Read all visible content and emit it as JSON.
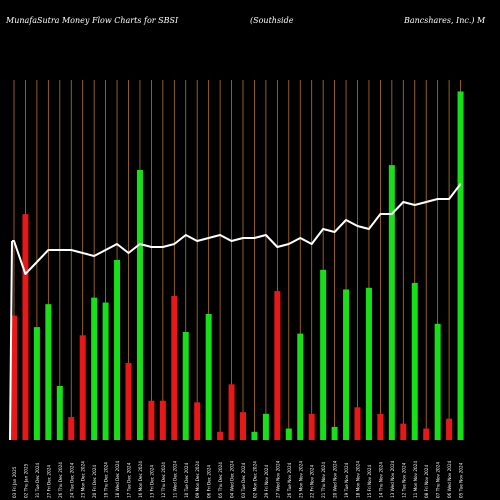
{
  "header": {
    "title_left": "MunafaSutra  Money Flow  Charts for SBSI",
    "title_mid": "(Southside",
    "title_right": "Bancshares,  Inc.) M"
  },
  "colors": {
    "background": "#000000",
    "gridline": "#b8742a",
    "inflow": "#18e018",
    "outflow": "#e81818",
    "line": "#ffffff",
    "text": "#ffffff"
  },
  "chart_data": {
    "type": "bar",
    "grid": "vertical",
    "legend": "none",
    "categories": [
      "03 Fri Jan 2025",
      "02 Thu Jan 2025",
      "31 Tue Dec 2024",
      "27 Fri Dec 2024",
      "26 Thu Dec 2024",
      "24 Tue Dec 2024",
      "23 Mon Dec 2024",
      "20 Fri Dec 2024",
      "19 Thu Dec 2024",
      "18 Wed Dec 2024",
      "17 Tue Dec 2024",
      "16 Mon Dec 2024",
      "13 Fri Dec 2024",
      "12 Thu Dec 2024",
      "11 Wed Dec 2024",
      "10 Tue Dec 2024",
      "09 Mon Dec 2024",
      "06 Fri Dec 2024",
      "05 Thu Dec 2024",
      "04 Wed Dec 2024",
      "03 Tue Dec 2024",
      "02 Mon Dec 2024",
      "29 Fri Nov 2024",
      "27 Wed Nov 2024",
      "26 Tue Nov 2024",
      "25 Mon Nov 2024",
      "22 Fri Nov 2024",
      "21 Thu Nov 2024",
      "20 Wed Nov 2024",
      "19 Tue Nov 2024",
      "18 Mon Nov 2024",
      "15 Fri Nov 2024",
      "14 Thu Nov 2024",
      "13 Wed Nov 2024",
      "12 Tue Nov 2024",
      "11 Mon Nov 2024",
      "08 Fri Nov 2024",
      "07 Thu Nov 2024",
      "06 Wed Nov 2024",
      "05 Tue Nov 2024"
    ],
    "flow": [
      -76,
      -138,
      69,
      83,
      33,
      -14,
      -64,
      87,
      84,
      110,
      -47,
      165,
      -24,
      -24,
      -88,
      66,
      -23,
      77,
      -5,
      -34,
      -17,
      5,
      16,
      -91,
      7,
      65,
      -16,
      104,
      8,
      92,
      -20,
      93,
      -16,
      168,
      -10,
      96,
      -7,
      71,
      -13,
      213
    ],
    "price": [
      34.9,
      33.8,
      34.2,
      34.6,
      34.6,
      34.6,
      34.5,
      34.4,
      34.6,
      34.8,
      34.5,
      34.8,
      34.7,
      34.7,
      34.8,
      35.1,
      34.9,
      35.0,
      35.1,
      34.9,
      35.0,
      35.0,
      35.1,
      34.7,
      34.8,
      35.0,
      34.8,
      35.3,
      35.2,
      35.6,
      35.4,
      35.3,
      35.8,
      35.8,
      36.2,
      36.1,
      36.2,
      36.3,
      36.3,
      36.8
    ],
    "flow_range": [
      0,
      220
    ],
    "price_range": [
      30,
      40
    ]
  }
}
